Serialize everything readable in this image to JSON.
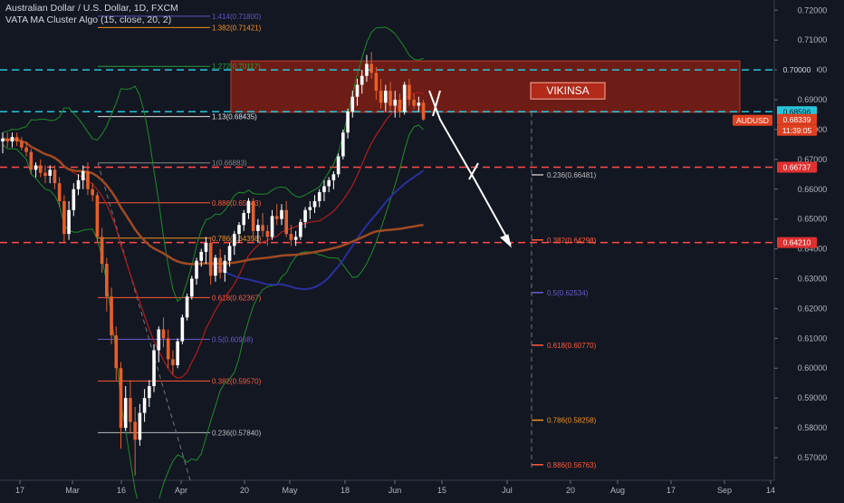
{
  "header": {
    "symbol_line": "Australian Dollar / U.S. Dollar, 1D, FXCM",
    "indicator_line": "VATA MA Cluster Algo (15, close, 20, 2)"
  },
  "colors": {
    "background": "#131722",
    "bull_candle": "#ffffff",
    "bear_candle": "#e65f2b",
    "resistance_zone": "#7a1f14",
    "bollinger": "#1f8a2a",
    "ma_fast": "#b01d1d",
    "ma_slow": "#a04a22",
    "ma_blue": "#2a2f9e",
    "cyan_level": "#26c6da",
    "red_level": "#ff4a4a",
    "arrow": "#ffffff"
  },
  "chart_data": {
    "type": "candlestick",
    "symbol": "AUDUSD",
    "timeframe": "1D",
    "ylim": [
      0.565,
      0.723
    ],
    "y_ticks": [
      "0.72000",
      "0.71000",
      "0.70000",
      "0.69000",
      "0.68000",
      "0.67000",
      "0.66000",
      "0.65000",
      "0.64000",
      "0.63000",
      "0.62000",
      "0.61000",
      "0.60000",
      "0.59000",
      "0.58000",
      "0.57000"
    ],
    "x_ticks": [
      "17",
      "Mar",
      "16",
      "Apr",
      "20",
      "May",
      "18",
      "Jun",
      "15",
      "Jul",
      "20",
      "Aug",
      "17",
      "Sep",
      "14"
    ],
    "price_labels": [
      {
        "text": "0.70000",
        "price": 0.7,
        "bg": "#131722",
        "fg": "#d1d4dc"
      },
      {
        "text": "0.68596",
        "price": 0.68596,
        "bg": "#26c6da",
        "fg": "#131722"
      },
      {
        "text": "AUDUSD",
        "price": 0.68339,
        "bg": "#e04020",
        "fg": "#ffffff"
      },
      {
        "text": "0.68339",
        "price": 0.68339,
        "bg": "#e04020",
        "fg": "#ffffff"
      },
      {
        "text": "11:39:05",
        "price": 0.68339,
        "bg": "#e04020",
        "fg": "#ffffff"
      },
      {
        "text": "0.66737",
        "price": 0.66737,
        "bg": "#e03030",
        "fg": "#ffffff"
      },
      {
        "text": "0.64210",
        "price": 0.6421,
        "bg": "#e03030",
        "fg": "#ffffff"
      }
    ],
    "horizontal_levels": [
      {
        "price": 0.7,
        "color": "#26c6da",
        "style": "dashed"
      },
      {
        "price": 0.68596,
        "color": "#26c6da",
        "style": "dashed"
      },
      {
        "price": 0.66737,
        "color": "#ff4a4a",
        "style": "dashed"
      },
      {
        "price": 0.6421,
        "color": "#ff4a4a",
        "style": "dashed"
      }
    ],
    "resistance_zone": {
      "label": "VIKINSA",
      "top": 0.703,
      "bottom": 0.6858
    },
    "fib_retracement": [
      {
        "ratio": "1.414",
        "price": 0.718,
        "label": "1.414(0.71800)",
        "color": "#5e55c0"
      },
      {
        "ratio": "1.382",
        "price": 0.71421,
        "label": "1.382(0.71421)",
        "color": "#f09020"
      },
      {
        "ratio": "1.272",
        "price": 0.70117,
        "label": "1.272(0.70117)",
        "color": "#2a9a3a"
      },
      {
        "ratio": "1.13",
        "price": 0.68435,
        "label": "1.13(0.68435)",
        "color": "#e0e0e0"
      },
      {
        "ratio": "1",
        "price": 0.66883,
        "label": "1(0.66883)",
        "color": "#888888"
      },
      {
        "ratio": "0.886",
        "price": 0.65543,
        "label": "0.886(0.65543)",
        "color": "#ff5a3a"
      },
      {
        "ratio": "0.786",
        "price": 0.64358,
        "label": "0.786(0.64358)",
        "color": "#f09020"
      },
      {
        "ratio": "0.618",
        "price": 0.62367,
        "label": "0.618(0.62367)",
        "color": "#ff5a3a"
      },
      {
        "ratio": "0.5",
        "price": 0.60968,
        "label": "0.5(0.60968)",
        "color": "#6a5acd"
      },
      {
        "ratio": "0.382",
        "price": 0.5957,
        "label": "0.382(0.59570)",
        "color": "#ff5a3a"
      },
      {
        "ratio": "0.236",
        "price": 0.5784,
        "label": "0.236(0.57840)",
        "color": "#bbbbbb"
      }
    ],
    "fib_projection": [
      {
        "ratio": "0.236",
        "price": 0.66481,
        "label": "0.236(0.66481)",
        "color": "#bbbbbb"
      },
      {
        "ratio": "0.382",
        "price": 0.64298,
        "label": "0.382(0.64298)",
        "color": "#ff5a3a"
      },
      {
        "ratio": "0.5",
        "price": 0.62534,
        "label": "0.5(0.62534)",
        "color": "#6a5acd"
      },
      {
        "ratio": "0.618",
        "price": 0.6077,
        "label": "0.618(0.60770)",
        "color": "#ff5a3a"
      },
      {
        "ratio": "0.786",
        "price": 0.58258,
        "label": "0.786(0.58258)",
        "color": "#f09020"
      },
      {
        "ratio": "0.886",
        "price": 0.56763,
        "label": "0.886(0.56763)",
        "color": "#ff5a3a"
      }
    ],
    "candles": [
      {
        "o": 0.676,
        "h": 0.679,
        "l": 0.672,
        "c": 0.677
      },
      {
        "o": 0.677,
        "h": 0.679,
        "l": 0.674,
        "c": 0.676
      },
      {
        "o": 0.676,
        "h": 0.679,
        "l": 0.674,
        "c": 0.6775
      },
      {
        "o": 0.6775,
        "h": 0.679,
        "l": 0.6745,
        "c": 0.676
      },
      {
        "o": 0.676,
        "h": 0.6775,
        "l": 0.673,
        "c": 0.674
      },
      {
        "o": 0.674,
        "h": 0.676,
        "l": 0.671,
        "c": 0.6725
      },
      {
        "o": 0.6725,
        "h": 0.6735,
        "l": 0.665,
        "c": 0.6665
      },
      {
        "o": 0.6665,
        "h": 0.669,
        "l": 0.664,
        "c": 0.668
      },
      {
        "o": 0.668,
        "h": 0.67,
        "l": 0.664,
        "c": 0.6655
      },
      {
        "o": 0.6655,
        "h": 0.668,
        "l": 0.662,
        "c": 0.6645
      },
      {
        "o": 0.6645,
        "h": 0.668,
        "l": 0.662,
        "c": 0.6665
      },
      {
        "o": 0.6665,
        "h": 0.668,
        "l": 0.66,
        "c": 0.662
      },
      {
        "o": 0.662,
        "h": 0.664,
        "l": 0.654,
        "c": 0.656
      },
      {
        "o": 0.656,
        "h": 0.658,
        "l": 0.642,
        "c": 0.645
      },
      {
        "o": 0.645,
        "h": 0.656,
        "l": 0.643,
        "c": 0.653
      },
      {
        "o": 0.653,
        "h": 0.662,
        "l": 0.651,
        "c": 0.66
      },
      {
        "o": 0.66,
        "h": 0.665,
        "l": 0.658,
        "c": 0.663
      },
      {
        "o": 0.663,
        "h": 0.668,
        "l": 0.66,
        "c": 0.666
      },
      {
        "o": 0.666,
        "h": 0.669,
        "l": 0.658,
        "c": 0.66
      },
      {
        "o": 0.66,
        "h": 0.662,
        "l": 0.656,
        "c": 0.658
      },
      {
        "o": 0.658,
        "h": 0.659,
        "l": 0.642,
        "c": 0.644
      },
      {
        "o": 0.644,
        "h": 0.647,
        "l": 0.632,
        "c": 0.635
      },
      {
        "o": 0.635,
        "h": 0.637,
        "l": 0.619,
        "c": 0.624
      },
      {
        "o": 0.624,
        "h": 0.627,
        "l": 0.608,
        "c": 0.611
      },
      {
        "o": 0.611,
        "h": 0.614,
        "l": 0.596,
        "c": 0.6
      },
      {
        "o": 0.6,
        "h": 0.602,
        "l": 0.573,
        "c": 0.58
      },
      {
        "o": 0.58,
        "h": 0.594,
        "l": 0.579,
        "c": 0.59
      },
      {
        "o": 0.59,
        "h": 0.596,
        "l": 0.578,
        "c": 0.582
      },
      {
        "o": 0.582,
        "h": 0.587,
        "l": 0.564,
        "c": 0.576
      },
      {
        "o": 0.576,
        "h": 0.588,
        "l": 0.574,
        "c": 0.585
      },
      {
        "o": 0.585,
        "h": 0.593,
        "l": 0.582,
        "c": 0.59
      },
      {
        "o": 0.59,
        "h": 0.596,
        "l": 0.587,
        "c": 0.594
      },
      {
        "o": 0.594,
        "h": 0.608,
        "l": 0.592,
        "c": 0.606
      },
      {
        "o": 0.606,
        "h": 0.614,
        "l": 0.602,
        "c": 0.613
      },
      {
        "o": 0.613,
        "h": 0.617,
        "l": 0.607,
        "c": 0.61
      },
      {
        "o": 0.61,
        "h": 0.613,
        "l": 0.6,
        "c": 0.603
      },
      {
        "o": 0.603,
        "h": 0.606,
        "l": 0.598,
        "c": 0.601
      },
      {
        "o": 0.601,
        "h": 0.61,
        "l": 0.6,
        "c": 0.609
      },
      {
        "o": 0.609,
        "h": 0.618,
        "l": 0.608,
        "c": 0.617
      },
      {
        "o": 0.617,
        "h": 0.625,
        "l": 0.616,
        "c": 0.624
      },
      {
        "o": 0.624,
        "h": 0.631,
        "l": 0.623,
        "c": 0.63
      },
      {
        "o": 0.63,
        "h": 0.637,
        "l": 0.628,
        "c": 0.636
      },
      {
        "o": 0.636,
        "h": 0.64,
        "l": 0.634,
        "c": 0.639
      },
      {
        "o": 0.639,
        "h": 0.644,
        "l": 0.635,
        "c": 0.642
      },
      {
        "o": 0.642,
        "h": 0.644,
        "l": 0.628,
        "c": 0.631
      },
      {
        "o": 0.631,
        "h": 0.638,
        "l": 0.629,
        "c": 0.637
      },
      {
        "o": 0.637,
        "h": 0.64,
        "l": 0.63,
        "c": 0.632
      },
      {
        "o": 0.632,
        "h": 0.638,
        "l": 0.629,
        "c": 0.636
      },
      {
        "o": 0.636,
        "h": 0.642,
        "l": 0.634,
        "c": 0.641
      },
      {
        "o": 0.641,
        "h": 0.646,
        "l": 0.638,
        "c": 0.645
      },
      {
        "o": 0.645,
        "h": 0.649,
        "l": 0.642,
        "c": 0.648
      },
      {
        "o": 0.648,
        "h": 0.653,
        "l": 0.646,
        "c": 0.652
      },
      {
        "o": 0.652,
        "h": 0.657,
        "l": 0.65,
        "c": 0.656
      },
      {
        "o": 0.656,
        "h": 0.657,
        "l": 0.643,
        "c": 0.646
      },
      {
        "o": 0.646,
        "h": 0.65,
        "l": 0.642,
        "c": 0.648
      },
      {
        "o": 0.648,
        "h": 0.652,
        "l": 0.644,
        "c": 0.646
      },
      {
        "o": 0.646,
        "h": 0.648,
        "l": 0.641,
        "c": 0.644
      },
      {
        "o": 0.644,
        "h": 0.653,
        "l": 0.643,
        "c": 0.651
      },
      {
        "o": 0.651,
        "h": 0.655,
        "l": 0.648,
        "c": 0.65
      },
      {
        "o": 0.65,
        "h": 0.655,
        "l": 0.648,
        "c": 0.653
      },
      {
        "o": 0.653,
        "h": 0.656,
        "l": 0.644,
        "c": 0.645
      },
      {
        "o": 0.645,
        "h": 0.648,
        "l": 0.641,
        "c": 0.643
      },
      {
        "o": 0.643,
        "h": 0.646,
        "l": 0.641,
        "c": 0.644
      },
      {
        "o": 0.644,
        "h": 0.65,
        "l": 0.643,
        "c": 0.649
      },
      {
        "o": 0.649,
        "h": 0.654,
        "l": 0.647,
        "c": 0.653
      },
      {
        "o": 0.653,
        "h": 0.656,
        "l": 0.65,
        "c": 0.654
      },
      {
        "o": 0.654,
        "h": 0.658,
        "l": 0.652,
        "c": 0.656
      },
      {
        "o": 0.656,
        "h": 0.66,
        "l": 0.654,
        "c": 0.659
      },
      {
        "o": 0.659,
        "h": 0.663,
        "l": 0.656,
        "c": 0.661
      },
      {
        "o": 0.661,
        "h": 0.664,
        "l": 0.659,
        "c": 0.663
      },
      {
        "o": 0.663,
        "h": 0.666,
        "l": 0.66,
        "c": 0.665
      },
      {
        "o": 0.665,
        "h": 0.672,
        "l": 0.664,
        "c": 0.671
      },
      {
        "o": 0.671,
        "h": 0.68,
        "l": 0.67,
        "c": 0.679
      },
      {
        "o": 0.679,
        "h": 0.687,
        "l": 0.677,
        "c": 0.686
      },
      {
        "o": 0.686,
        "h": 0.693,
        "l": 0.684,
        "c": 0.691
      },
      {
        "o": 0.691,
        "h": 0.697,
        "l": 0.688,
        "c": 0.695
      },
      {
        "o": 0.695,
        "h": 0.7,
        "l": 0.692,
        "c": 0.698
      },
      {
        "o": 0.698,
        "h": 0.705,
        "l": 0.696,
        "c": 0.702
      },
      {
        "o": 0.702,
        "h": 0.706,
        "l": 0.697,
        "c": 0.699
      },
      {
        "o": 0.699,
        "h": 0.701,
        "l": 0.69,
        "c": 0.693
      },
      {
        "o": 0.693,
        "h": 0.697,
        "l": 0.687,
        "c": 0.689
      },
      {
        "o": 0.689,
        "h": 0.695,
        "l": 0.686,
        "c": 0.693
      },
      {
        "o": 0.693,
        "h": 0.696,
        "l": 0.686,
        "c": 0.688
      },
      {
        "o": 0.688,
        "h": 0.693,
        "l": 0.684,
        "c": 0.69
      },
      {
        "o": 0.69,
        "h": 0.692,
        "l": 0.684,
        "c": 0.686
      },
      {
        "o": 0.686,
        "h": 0.696,
        "l": 0.685,
        "c": 0.695
      },
      {
        "o": 0.695,
        "h": 0.697,
        "l": 0.688,
        "c": 0.69
      },
      {
        "o": 0.69,
        "h": 0.692,
        "l": 0.687,
        "c": 0.688
      },
      {
        "o": 0.688,
        "h": 0.691,
        "l": 0.686,
        "c": 0.689
      },
      {
        "o": 0.689,
        "h": 0.69,
        "l": 0.683,
        "c": 0.6834
      }
    ],
    "annotations": [
      "VIKINSA"
    ]
  }
}
